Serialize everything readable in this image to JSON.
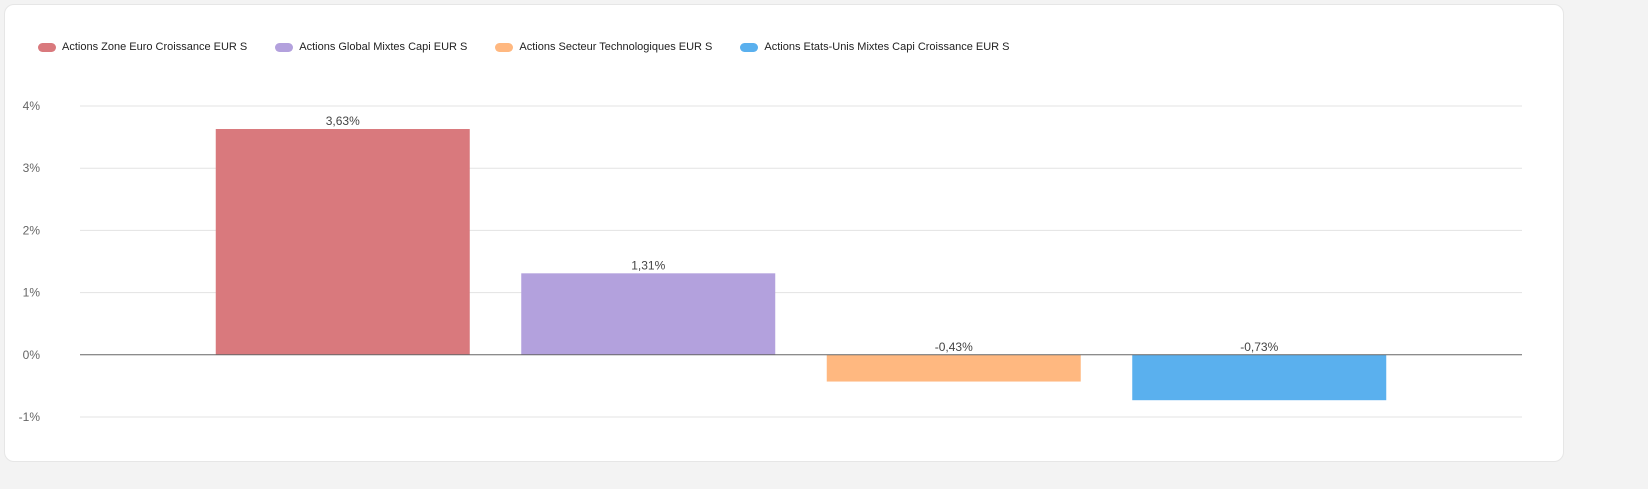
{
  "chart_data": {
    "type": "bar",
    "series": [
      {
        "name": "Actions Zone Euro Croissance EUR S",
        "value": 3.63,
        "label": "3,63%",
        "color": "#d9797d"
      },
      {
        "name": "Actions Global Mixtes Capi EUR S",
        "value": 1.31,
        "label": "1,31%",
        "color": "#b3a1dd"
      },
      {
        "name": "Actions Secteur Technologiques EUR S",
        "value": -0.43,
        "label": "-0,43%",
        "color": "#ffb880"
      },
      {
        "name": "Actions Etats-Unis Mixtes Capi Croissance EUR S",
        "value": -0.73,
        "label": "-0,73%",
        "color": "#5ab0ee"
      }
    ],
    "ylim": [
      -1,
      4
    ],
    "yticks": [
      4,
      3,
      2,
      1,
      0,
      -1
    ],
    "ytick_labels": [
      "4%",
      "3%",
      "2%",
      "1%",
      "0%",
      "-1%"
    ],
    "grid": true,
    "legend": "top-left"
  }
}
